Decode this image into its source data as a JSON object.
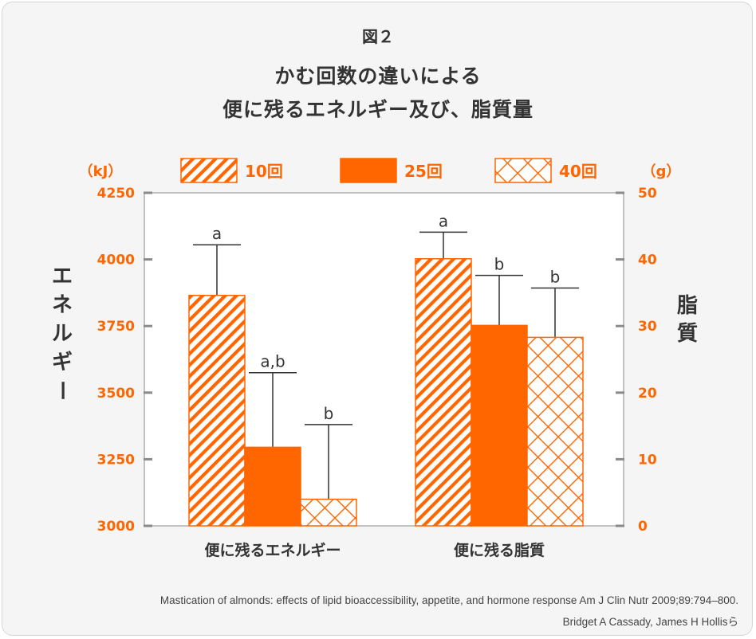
{
  "figure": {
    "label": "図２",
    "title_line1": "かむ回数の違いによる",
    "title_line2": "便に残るエネルギー及び、脂質量"
  },
  "colors": {
    "accent": "#ff6600",
    "text": "#333333",
    "background": "#f5f5f5"
  },
  "chart_data": {
    "type": "bar",
    "title": "かむ回数の違いによる 便に残るエネルギー及び、脂質量",
    "categories": [
      "便に残るエネルギー",
      "便に残る脂質"
    ],
    "legend": {
      "position": "top",
      "entries": [
        {
          "label": "10回",
          "pattern": "diagonal-hatch"
        },
        {
          "label": "25回",
          "pattern": "solid"
        },
        {
          "label": "40回",
          "pattern": "crosshatch"
        }
      ]
    },
    "left_axis": {
      "label": "エネルギー",
      "unit": "（kJ）",
      "ylim": [
        3000,
        4250
      ],
      "ticks": [
        3000,
        3250,
        3500,
        3750,
        4000,
        4250
      ]
    },
    "right_axis": {
      "label": "脂質",
      "unit": "（g）",
      "ylim": [
        0,
        50
      ],
      "ticks": [
        0,
        10,
        20,
        30,
        40,
        50
      ]
    },
    "groups": [
      {
        "category": "便に残るエネルギー",
        "axis": "left",
        "bars": [
          {
            "series": "10回",
            "value": 3865,
            "error_top": 4055,
            "label": "a"
          },
          {
            "series": "25回",
            "value": 3295,
            "error_top": 3575,
            "label": "a,b"
          },
          {
            "series": "40回",
            "value": 3100,
            "error_top": 3380,
            "label": "b"
          }
        ]
      },
      {
        "category": "便に残る脂質",
        "axis": "right",
        "bars": [
          {
            "series": "10回",
            "value": 40.1,
            "error_top": 44.1,
            "label": "a"
          },
          {
            "series": "25回",
            "value": 30.1,
            "error_top": 37.6,
            "label": "b"
          },
          {
            "series": "40回",
            "value": 28.3,
            "error_top": 35.7,
            "label": "b"
          }
        ]
      }
    ]
  },
  "source": {
    "line1": "Mastication of almonds: effects of lipid bioaccessibility, appetite, and hormone response Am J Clin Nutr 2009;89:794–800.",
    "line2": "Bridget A Cassady, James H Hollisら"
  }
}
